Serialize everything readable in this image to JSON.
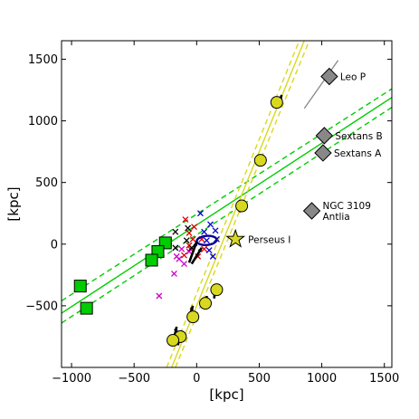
{
  "chart_data": {
    "type": "scatter",
    "title": "",
    "xlabel": "[kpc]",
    "ylabel": "[kpc]",
    "xlim": [
      -1080,
      1560
    ],
    "ylim": [
      -1000,
      1650
    ],
    "xticks": [
      -1000,
      -500,
      0,
      500,
      1000,
      1500
    ],
    "yticks": [
      -500,
      0,
      500,
      1000,
      1500
    ],
    "xtick_labels": [
      "−1000",
      "−500",
      "0",
      "500",
      "1000",
      "1500"
    ],
    "ytick_labels": [
      "−500",
      "0",
      "500",
      "1000",
      "1500"
    ],
    "grid": false,
    "colors": {
      "green": "#00cc00",
      "yellow": "#d8d820",
      "grey_marker": "#888888",
      "red": "#dd0000",
      "magenta": "#cc00cc",
      "blue": "#0000cc",
      "black": "#000000"
    },
    "lines": [
      {
        "color": "#00cc00",
        "style": "solid",
        "points": [
          [
            -1080,
            -560
          ],
          [
            1560,
            1190
          ]
        ]
      },
      {
        "color": "#00cc00",
        "style": "dashed",
        "points": [
          [
            -1080,
            -460
          ],
          [
            1560,
            1260
          ]
        ]
      },
      {
        "color": "#00cc00",
        "style": "dashed",
        "points": [
          [
            -1080,
            -640
          ],
          [
            1560,
            1110
          ]
        ]
      },
      {
        "color": "#d8d820",
        "style": "solid",
        "points": [
          [
            -200,
            -1000
          ],
          [
            860,
            1650
          ]
        ]
      },
      {
        "color": "#d8d820",
        "style": "dashed",
        "points": [
          [
            -170,
            -1000
          ],
          [
            900,
            1650
          ]
        ]
      },
      {
        "color": "#d8d820",
        "style": "dashed",
        "points": [
          [
            -240,
            -1000
          ],
          [
            820,
            1650
          ]
        ]
      },
      {
        "color": "#888888",
        "style": "solid",
        "points": [
          [
            860,
            1100
          ],
          [
            1130,
            1490
          ]
        ]
      }
    ],
    "green_squares": [
      [
        -250,
        10
      ],
      [
        -310,
        -60
      ],
      [
        -360,
        -130
      ],
      [
        -880,
        -520
      ],
      [
        -930,
        -340
      ]
    ],
    "yellow_circles": [
      [
        640,
        1150
      ],
      [
        510,
        680
      ],
      [
        360,
        310
      ],
      [
        160,
        -370
      ],
      [
        70,
        -480
      ],
      [
        -30,
        -590
      ],
      [
        -130,
        -750
      ],
      [
        -190,
        -780
      ]
    ],
    "grey_diamonds": [
      {
        "x": 1060,
        "y": 1360,
        "label": "Leo P"
      },
      {
        "x": 1020,
        "y": 880,
        "label": "Sextans B"
      },
      {
        "x": 1010,
        "y": 740,
        "label": "Sextans A"
      },
      {
        "x": 920,
        "y": 270,
        "label": "NGC 3109\nAntlia"
      }
    ],
    "star": {
      "x": 310,
      "y": 40,
      "label": "Perseus I"
    },
    "crosses": [
      {
        "color": "#dd0000",
        "points": [
          [
            -90,
            200
          ],
          [
            -60,
            90
          ],
          [
            -30,
            40
          ],
          [
            -50,
            -40
          ],
          [
            10,
            -100
          ],
          [
            -100,
            -90
          ],
          [
            -20,
            140
          ],
          [
            40,
            40
          ],
          [
            -60,
            -10
          ],
          [
            60,
            -40
          ]
        ]
      },
      {
        "color": "#cc00cc",
        "points": [
          [
            -300,
            -420
          ],
          [
            -180,
            -240
          ],
          [
            -140,
            -120
          ],
          [
            -100,
            -160
          ],
          [
            -160,
            -100
          ],
          [
            -60,
            -60
          ],
          [
            -120,
            -40
          ]
        ]
      },
      {
        "color": "#0000cc",
        "points": [
          [
            30,
            250
          ],
          [
            110,
            160
          ],
          [
            150,
            110
          ],
          [
            160,
            40
          ],
          [
            100,
            -50
          ],
          [
            130,
            -100
          ],
          [
            80,
            30
          ],
          [
            60,
            100
          ]
        ]
      },
      {
        "color": "#000000",
        "points": [
          [
            -170,
            100
          ],
          [
            -220,
            20
          ],
          [
            -170,
            -30
          ],
          [
            -80,
            30
          ],
          [
            -70,
            130
          ],
          [
            -40,
            -30
          ]
        ]
      }
    ],
    "mw_ellipse": {
      "x": 80,
      "y": 30,
      "color": "#000099"
    },
    "bold_arrows": [
      [
        [
          -60,
          -150
        ],
        [
          0,
          20
        ]
      ],
      [
        [
          -40,
          -160
        ],
        [
          40,
          -30
        ]
      ],
      [
        [
          650,
          1130
        ],
        [
          680,
          1210
        ]
      ],
      [
        [
          490,
          640
        ],
        [
          500,
          710
        ]
      ],
      [
        [
          340,
          260
        ],
        [
          380,
          330
        ]
      ],
      [
        [
          140,
          -440
        ],
        [
          150,
          -340
        ]
      ],
      [
        [
          80,
          -500
        ],
        [
          80,
          -420
        ]
      ],
      [
        [
          -50,
          -560
        ],
        [
          -30,
          -500
        ]
      ],
      [
        [
          -150,
          -820
        ],
        [
          -120,
          -700
        ]
      ],
      [
        [
          -180,
          -760
        ],
        [
          -160,
          -670
        ]
      ]
    ]
  }
}
